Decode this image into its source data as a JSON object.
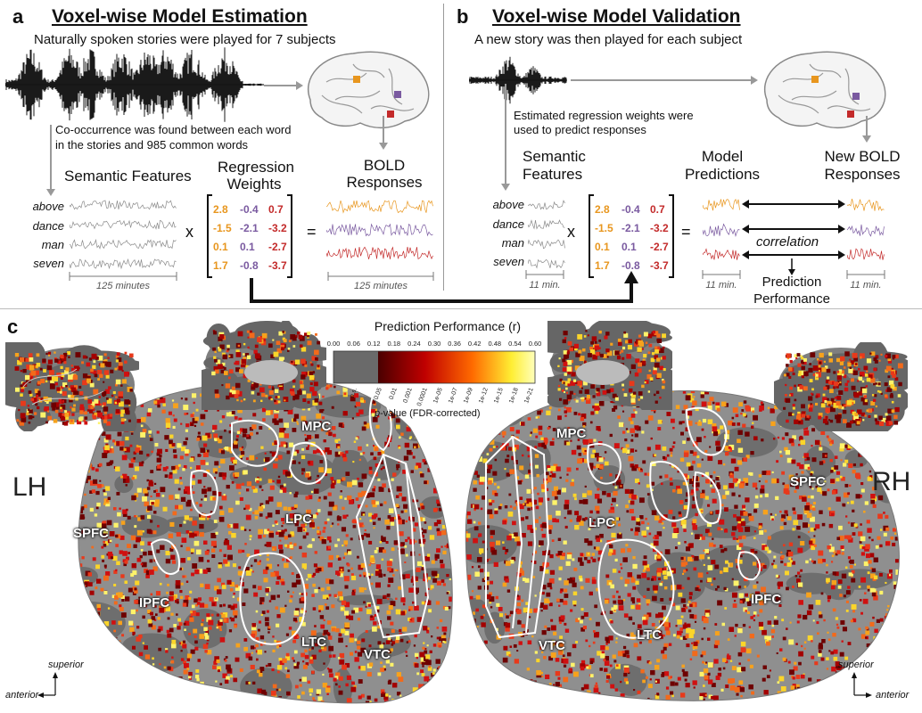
{
  "panel_a": {
    "letter": "a",
    "title": "Voxel-wise Model Estimation",
    "subtitle": "Naturally spoken stories were played for 7 subjects",
    "cooccurrence_note_line1": "Co-occurrence was found between each word",
    "cooccurrence_note_line2": "in the stories and 985 common words",
    "semantic_features_label": "Semantic Features",
    "regression_label_line1": "Regression",
    "regression_label_line2": "Weights",
    "bold_label_line1": "BOLD",
    "bold_label_line2": "Responses",
    "words": [
      "above",
      "dance",
      "man",
      "seven"
    ],
    "times": "x",
    "equals": "=",
    "duration_left": "125 minutes",
    "duration_right": "125 minutes"
  },
  "panel_b": {
    "letter": "b",
    "title": "Voxel-wise Model Validation",
    "subtitle": "A new story was then played for each subject",
    "estimated_note_line1": "Estimated regression weights were",
    "estimated_note_line2": "used to predict responses",
    "semantic_features_line1": "Semantic",
    "semantic_features_line2": "Features",
    "model_predictions_line1": "Model",
    "model_predictions_line2": "Predictions",
    "new_bold_line1": "New BOLD",
    "new_bold_line2": "Responses",
    "words": [
      "above",
      "dance",
      "man",
      "seven"
    ],
    "times": "x",
    "equals": "=",
    "correlation": "correlation",
    "prediction_performance_line1": "Prediction",
    "prediction_performance_line2": "Performance",
    "duration_1": "11 min.",
    "duration_2": "11 min.",
    "duration_3": "11 min."
  },
  "weights_matrix": [
    [
      "2.8",
      "-0.4",
      "0.7"
    ],
    [
      "-1.5",
      "-2.1",
      "-3.2"
    ],
    [
      "0.1",
      "0.1",
      "-2.7"
    ],
    [
      "1.7",
      "-0.8",
      "-3.7"
    ]
  ],
  "panel_c": {
    "letter": "c",
    "colorbar_title": "Prediction Performance (r)",
    "r_ticks": [
      "0.00",
      "0.06",
      "0.12",
      "0.18",
      "0.24",
      "0.30",
      "0.36",
      "0.42",
      "0.48",
      "0.54",
      "0.60"
    ],
    "p_ticks": [
      "n.s.",
      "0.05",
      "0.01",
      "0.001",
      "0.0001",
      "1e-05",
      "1e-07",
      "1e-09",
      "1e-12",
      "1e-15",
      "1e-18",
      "1e-21"
    ],
    "p_label_italic": "p",
    "p_label_rest": "-value (FDR-corrected)",
    "left_hemisphere": "LH",
    "right_hemisphere": "RH",
    "left_regions": [
      "MPC",
      "LPC",
      "SPFC",
      "IPFC",
      "LTC",
      "VTC"
    ],
    "right_regions": [
      "MPC",
      "LPC",
      "SPFC",
      "IPFC",
      "LTC",
      "VTC"
    ],
    "axis_superior": "superior",
    "axis_anterior": "anterior"
  },
  "colors": {
    "orange": "#e8961e",
    "purple": "#7a5aa0",
    "red": "#c32a2a",
    "cortex_gray": "#8a8a8a"
  }
}
